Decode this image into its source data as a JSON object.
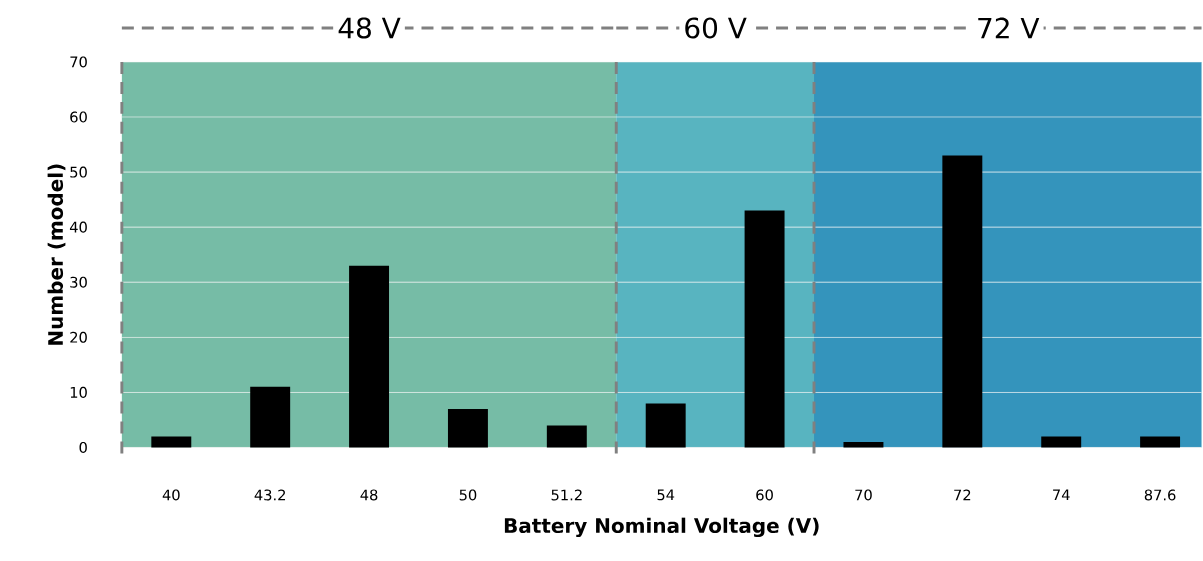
{
  "chart_data": {
    "type": "bar",
    "xlabel": "Battery Nominal Voltage (V)",
    "ylabel": "Number (model)",
    "categories": [
      "40",
      "43.2",
      "48",
      "50",
      "51.2",
      "54",
      "60",
      "70",
      "72",
      "74",
      "87.6"
    ],
    "values": [
      2,
      11,
      33,
      7,
      4,
      8,
      43,
      1,
      53,
      2,
      2
    ],
    "color": "#000000",
    "ylim": [
      0,
      70
    ],
    "yticks": [
      0,
      10,
      20,
      30,
      40,
      50,
      60,
      70
    ],
    "grid": "y",
    "bands": [
      {
        "axis": "x",
        "from": "40",
        "to": "51.2",
        "label": "48 V",
        "color": "#76bca6"
      },
      {
        "axis": "x",
        "from": "54",
        "to": "60",
        "label": "60 V",
        "color": "#58b4c0"
      },
      {
        "axis": "x",
        "from": "70",
        "to": "87.6",
        "label": "72 V",
        "color": "#3494bc"
      }
    ]
  }
}
